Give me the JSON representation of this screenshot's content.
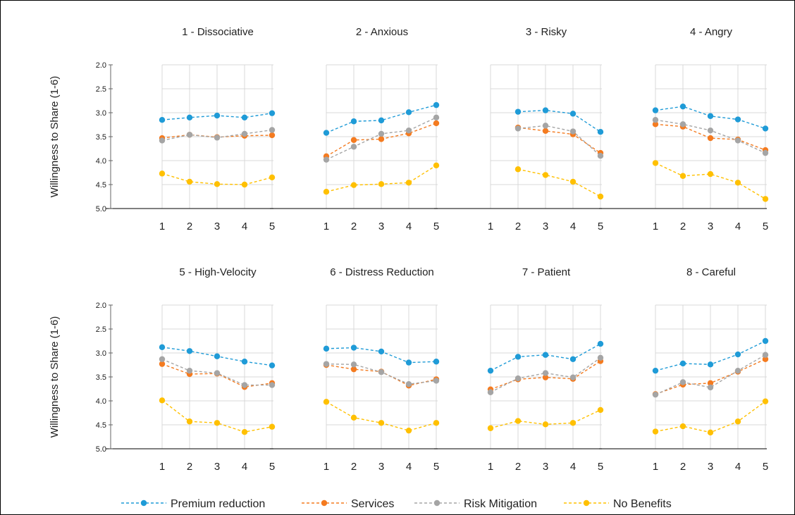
{
  "chart_data": {
    "type": "line",
    "ylabel": "Willingness to Share (1-6)",
    "y_axis_inverted": true,
    "ylim": [
      2.0,
      5.0
    ],
    "yticks": [
      "2.0",
      "2.5",
      "3.0",
      "3.5",
      "4.0",
      "4.5",
      "5.0"
    ],
    "x_categories": [
      "1",
      "2",
      "3",
      "4",
      "5"
    ],
    "grid": true,
    "legend_placement": "bottom",
    "series_meta": [
      {
        "name": "Premium reduction",
        "color": "#1f9bd7"
      },
      {
        "name": "Services",
        "color": "#f47b20"
      },
      {
        "name": "Risk Mitigation",
        "color": "#a5a5a5"
      },
      {
        "name": "No Benefits",
        "color": "#ffc000"
      }
    ],
    "panels": [
      {
        "title": "1 - Dissociative",
        "series": [
          [
            3.15,
            3.1,
            3.06,
            3.1,
            3.01
          ],
          [
            3.53,
            3.46,
            3.51,
            3.48,
            3.47
          ],
          [
            3.58,
            3.46,
            3.52,
            3.44,
            3.36
          ],
          [
            4.27,
            4.44,
            4.49,
            4.5,
            4.35
          ]
        ]
      },
      {
        "title": "2 - Anxious",
        "series": [
          [
            3.42,
            3.18,
            3.16,
            2.99,
            2.84
          ],
          [
            3.91,
            3.57,
            3.55,
            3.43,
            3.22
          ],
          [
            3.98,
            3.71,
            3.44,
            3.37,
            3.1
          ],
          [
            4.65,
            4.51,
            4.49,
            4.46,
            4.1
          ]
        ]
      },
      {
        "title": "3 - Risky",
        "series": [
          [
            null,
            2.98,
            2.95,
            3.02,
            3.4
          ],
          [
            null,
            3.31,
            3.38,
            3.45,
            3.84
          ],
          [
            null,
            3.33,
            3.27,
            3.39,
            3.9
          ],
          [
            null,
            4.18,
            4.3,
            4.44,
            4.75
          ]
        ]
      },
      {
        "title": "4 - Angry",
        "series": [
          [
            2.95,
            2.87,
            3.07,
            3.14,
            3.33
          ],
          [
            3.24,
            3.29,
            3.53,
            3.56,
            3.78
          ],
          [
            3.15,
            3.24,
            3.37,
            3.58,
            3.84
          ],
          [
            4.05,
            4.32,
            4.28,
            4.46,
            4.8
          ]
        ]
      },
      {
        "title": "5 - High-Velocity",
        "series": [
          [
            2.88,
            2.96,
            3.07,
            3.18,
            3.26
          ],
          [
            3.23,
            3.44,
            3.43,
            3.71,
            3.63
          ],
          [
            3.13,
            3.37,
            3.42,
            3.67,
            3.67
          ],
          [
            3.99,
            4.43,
            4.46,
            4.65,
            4.54
          ]
        ]
      },
      {
        "title": "6 - Distress Reduction",
        "series": [
          [
            2.91,
            2.89,
            2.97,
            3.2,
            3.18
          ],
          [
            3.25,
            3.34,
            3.39,
            3.68,
            3.55
          ],
          [
            3.23,
            3.24,
            3.4,
            3.65,
            3.58
          ],
          [
            4.02,
            4.35,
            4.46,
            4.62,
            4.46
          ]
        ]
      },
      {
        "title": "7 - Patient",
        "series": [
          [
            3.37,
            3.08,
            3.04,
            3.13,
            2.81
          ],
          [
            3.76,
            3.55,
            3.51,
            3.54,
            3.17
          ],
          [
            3.82,
            3.53,
            3.42,
            3.51,
            3.1
          ],
          [
            4.57,
            4.42,
            4.49,
            4.46,
            4.19
          ]
        ]
      },
      {
        "title": "8 - Careful",
        "series": [
          [
            3.37,
            3.22,
            3.24,
            3.03,
            2.75
          ],
          [
            3.86,
            3.66,
            3.63,
            3.39,
            3.13
          ],
          [
            3.87,
            3.61,
            3.72,
            3.37,
            3.04
          ],
          [
            4.64,
            4.53,
            4.66,
            4.43,
            4.01
          ]
        ]
      }
    ]
  }
}
